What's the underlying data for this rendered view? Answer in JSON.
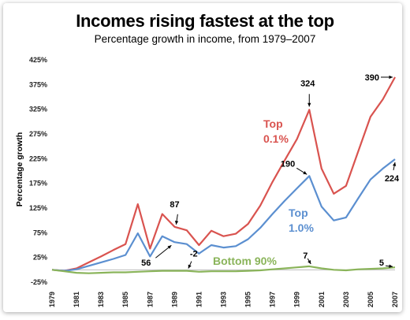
{
  "chart_data": {
    "type": "line",
    "title": "Incomes rising fastest at the top",
    "subtitle": "Percentage growth in income, from 1979–2007",
    "ylabel": "Percentage growth",
    "xlabel": "",
    "ylim": [
      -25,
      425
    ],
    "yticks": [
      "-25%",
      "25%",
      "75%",
      "125%",
      "175%",
      "225%",
      "275%",
      "325%",
      "375%",
      "425%"
    ],
    "xticks": [
      "1979",
      "1981",
      "1983",
      "1985",
      "1987",
      "1989",
      "1991",
      "1993",
      "1995",
      "1997",
      "1999",
      "2001",
      "2003",
      "2005",
      "2007"
    ],
    "x": [
      1979,
      1980,
      1981,
      1982,
      1983,
      1984,
      1985,
      1986,
      1987,
      1988,
      1989,
      1990,
      1991,
      1992,
      1993,
      1994,
      1995,
      1996,
      1997,
      1998,
      1999,
      2000,
      2001,
      2002,
      2003,
      2004,
      2005,
      2006,
      2007
    ],
    "series": [
      {
        "name": "Top 0.1%",
        "color": "#d9534f",
        "values": [
          0,
          -2,
          3,
          15,
          27,
          40,
          52,
          133,
          43,
          113,
          87,
          80,
          50,
          79,
          68,
          73,
          93,
          130,
          178,
          222,
          265,
          324,
          205,
          154,
          170,
          240,
          310,
          345,
          390
        ]
      },
      {
        "name": "Top 1.0%",
        "color": "#5b8fd0",
        "values": [
          0,
          -2,
          1,
          8,
          15,
          22,
          30,
          74,
          27,
          68,
          56,
          52,
          33,
          50,
          45,
          48,
          62,
          85,
          113,
          140,
          165,
          190,
          128,
          100,
          106,
          145,
          183,
          205,
          224
        ]
      },
      {
        "name": "Bottom 90%",
        "color": "#8ab45a",
        "values": [
          0,
          -3,
          -6,
          -7,
          -6,
          -5,
          -5,
          -4,
          -3,
          -2,
          -2,
          -2,
          -4,
          -3,
          -3,
          -3,
          -2,
          -1,
          1,
          3,
          5,
          7,
          3,
          0,
          -1,
          1,
          2,
          3,
          5
        ]
      }
    ],
    "series_labels": [
      {
        "line1": "Top",
        "line2": "0.1%",
        "color": "#d9534f"
      },
      {
        "line1": "Top",
        "line2": "1.0%",
        "color": "#5b8fd0"
      },
      {
        "line1": "Bottom 90%",
        "line2": "",
        "color": "#8ab45a"
      }
    ],
    "annotations": [
      {
        "text": "87",
        "year": 1989,
        "value": 87
      },
      {
        "text": "56",
        "year": 1989,
        "value": 56
      },
      {
        "text": "-2",
        "year": 1990,
        "value": -2
      },
      {
        "text": "324",
        "year": 2000,
        "value": 324
      },
      {
        "text": "190",
        "year": 2000,
        "value": 190
      },
      {
        "text": "7",
        "year": 2000,
        "value": 7
      },
      {
        "text": "390",
        "year": 2007,
        "value": 390
      },
      {
        "text": "224",
        "year": 2007,
        "value": 224
      },
      {
        "text": "5",
        "year": 2007,
        "value": 5
      }
    ]
  }
}
